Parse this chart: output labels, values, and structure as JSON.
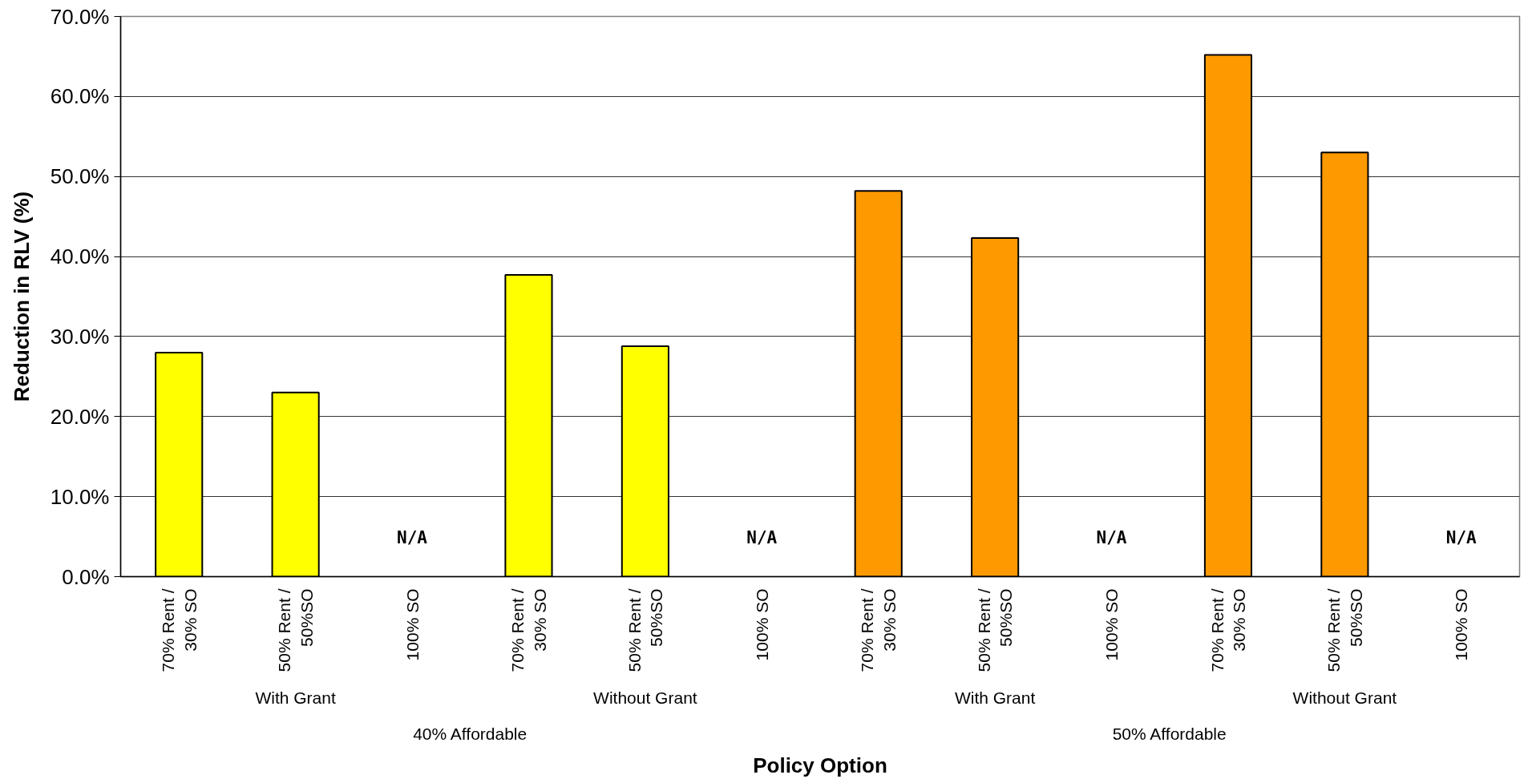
{
  "chart_data": {
    "type": "bar",
    "xlabel": "Policy Option",
    "ylabel": "Reduction in RLV (%)",
    "categories": [
      "70% Rent /\n30% SO",
      "50% Rent /\n50%SO",
      "100% SO",
      "70% Rent /\n30% SO",
      "50% Rent /\n50%SO",
      "100% SO",
      "70% Rent /\n30% SO",
      "50% Rent /\n50%SO",
      "100% SO",
      "70% Rent /\n30% SO",
      "50% Rent /\n50%SO",
      "100% SO"
    ],
    "values": [
      28.0,
      23.0,
      null,
      37.7,
      28.8,
      null,
      48.2,
      42.3,
      null,
      65.2,
      53.0,
      null
    ],
    "colors": [
      "#ffff00",
      "#ffff00",
      "#ffff00",
      "#ffff00",
      "#ffff00",
      "#ffff00",
      "#ff9900",
      "#ff9900",
      "#ff9900",
      "#ff9900",
      "#ff9900",
      "#ff9900"
    ],
    "value_labels": [
      null,
      null,
      "N/A",
      null,
      null,
      "N/A",
      null,
      null,
      "N/A",
      null,
      null,
      "N/A"
    ],
    "ylim": [
      0,
      70
    ],
    "yticks": [
      {
        "value": 0,
        "label": "0.0%"
      },
      {
        "value": 10,
        "label": "10.0%"
      },
      {
        "value": 20,
        "label": "20.0%"
      },
      {
        "value": 30,
        "label": "30.0%"
      },
      {
        "value": 40,
        "label": "40.0%"
      },
      {
        "value": 50,
        "label": "50.0%"
      },
      {
        "value": 60,
        "label": "60.0%"
      },
      {
        "value": 70,
        "label": "70.0%"
      }
    ],
    "grid": "y",
    "annotations": [
      "With Grant",
      "Without Grant",
      "With Grant",
      "Without Grant",
      "40% Affordable",
      "50% Affordable"
    ]
  }
}
